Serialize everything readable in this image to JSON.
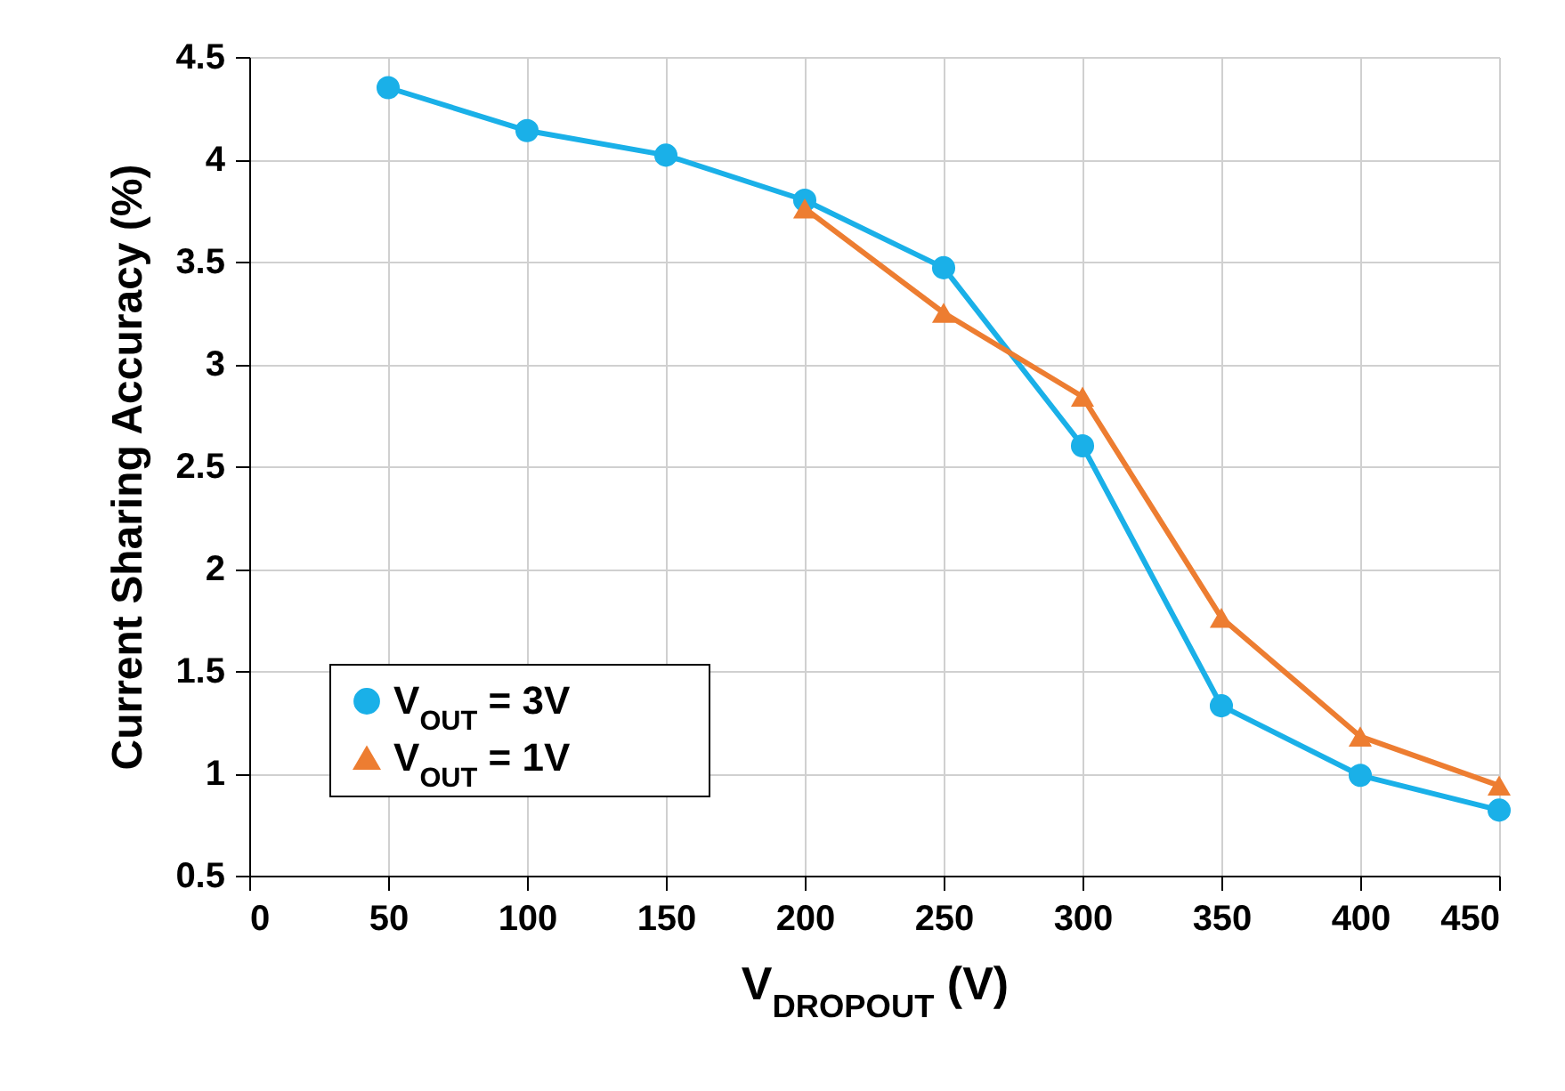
{
  "chart_data": {
    "type": "line",
    "xlabel": "V$_{DROPOUT}$ (V)",
    "ylabel": "Current Sharing Accuracy (%)",
    "xlim": [
      0,
      450
    ],
    "xticks": [
      0,
      50,
      100,
      150,
      200,
      250,
      300,
      350,
      400,
      450
    ],
    "ylim": [
      0.5,
      4.5
    ],
    "yticks": [
      0.5,
      1,
      1.5,
      2,
      2.5,
      3,
      3.5,
      4,
      4.5
    ],
    "grid": true,
    "legend": "bottom left",
    "line_style": "solid",
    "series": [
      {
        "name": "V$_{OUT}$ = 3V",
        "color": "#1ab0e8",
        "marker": "circle",
        "x": [
          50,
          100,
          150,
          200,
          250,
          300,
          350,
          400,
          450
        ],
        "values": [
          4.35,
          4.14,
          4.02,
          3.8,
          3.47,
          2.6,
          1.33,
          0.99,
          0.82
        ]
      },
      {
        "name": "V$_{OUT}$ = 1V",
        "color": "#ed7d31",
        "marker": "triangle",
        "x": [
          200,
          250,
          300,
          350,
          400,
          450
        ],
        "values": [
          3.76,
          3.25,
          2.84,
          1.76,
          1.18,
          0.94
        ]
      }
    ]
  }
}
